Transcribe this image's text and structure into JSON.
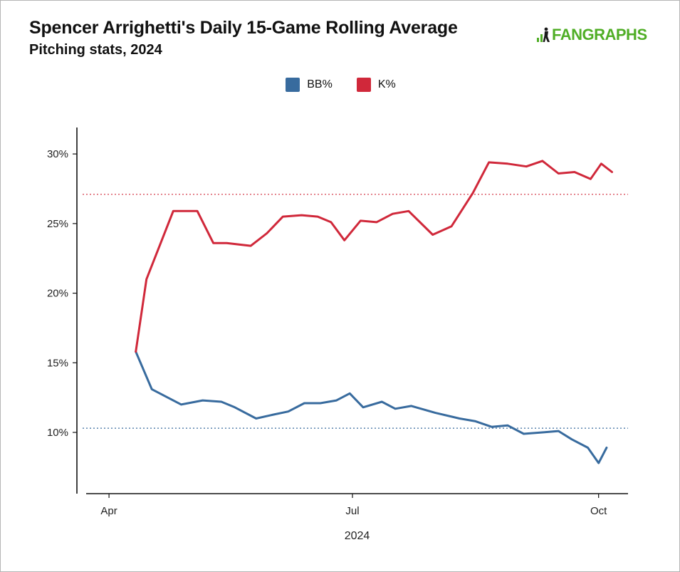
{
  "header": {
    "title": "Spencer Arrighetti's Daily 15-Game Rolling Average",
    "subtitle": "Pitching stats, 2024",
    "logo_text": "FANGRAPHS",
    "logo_icon": "fangraphs-logo-icon"
  },
  "colors": {
    "bb": "#386b9e",
    "k": "#d0283a",
    "brand": "#50ae26"
  },
  "chart_data": {
    "type": "line",
    "title": "Spencer Arrighetti's Daily 15-Game Rolling Average",
    "subtitle": "Pitching stats, 2024",
    "xlabel": "2024",
    "ylabel": "",
    "x_ticks": [
      {
        "label": "Apr",
        "date": "2024-04-01"
      },
      {
        "label": "Jul",
        "date": "2024-07-01"
      },
      {
        "label": "Oct",
        "date": "2024-10-01"
      }
    ],
    "y_ticks": [
      {
        "label": "10%",
        "value": 10
      },
      {
        "label": "15%",
        "value": 15
      },
      {
        "label": "20%",
        "value": 20
      },
      {
        "label": "25%",
        "value": 25
      },
      {
        "label": "30%",
        "value": 30
      }
    ],
    "xlim": [
      "2024-03-20",
      "2024-10-12"
    ],
    "ylim": [
      5.6,
      31.9
    ],
    "grid": false,
    "legend_position": "top-center",
    "reference_lines": [
      {
        "series": "K%",
        "value": 27.1,
        "style": "dotted"
      },
      {
        "series": "BB%",
        "value": 10.3,
        "style": "dotted"
      }
    ],
    "series": [
      {
        "name": "BB%",
        "points": [
          {
            "x": "2024-04-11",
            "y": 15.8
          },
          {
            "x": "2024-04-17",
            "y": 13.1
          },
          {
            "x": "2024-04-28",
            "y": 12.0
          },
          {
            "x": "2024-05-06",
            "y": 12.3
          },
          {
            "x": "2024-05-13",
            "y": 12.2
          },
          {
            "x": "2024-05-18",
            "y": 11.8
          },
          {
            "x": "2024-05-26",
            "y": 11.0
          },
          {
            "x": "2024-06-02",
            "y": 11.3
          },
          {
            "x": "2024-06-07",
            "y": 11.5
          },
          {
            "x": "2024-06-13",
            "y": 12.1
          },
          {
            "x": "2024-06-19",
            "y": 12.1
          },
          {
            "x": "2024-06-25",
            "y": 12.3
          },
          {
            "x": "2024-06-30",
            "y": 12.8
          },
          {
            "x": "2024-07-05",
            "y": 11.8
          },
          {
            "x": "2024-07-12",
            "y": 12.2
          },
          {
            "x": "2024-07-17",
            "y": 11.7
          },
          {
            "x": "2024-07-23",
            "y": 11.9
          },
          {
            "x": "2024-08-01",
            "y": 11.4
          },
          {
            "x": "2024-08-10",
            "y": 11.0
          },
          {
            "x": "2024-08-16",
            "y": 10.8
          },
          {
            "x": "2024-08-22",
            "y": 10.4
          },
          {
            "x": "2024-08-28",
            "y": 10.5
          },
          {
            "x": "2024-09-03",
            "y": 9.9
          },
          {
            "x": "2024-09-10",
            "y": 10.0
          },
          {
            "x": "2024-09-16",
            "y": 10.1
          },
          {
            "x": "2024-09-21",
            "y": 9.5
          },
          {
            "x": "2024-09-27",
            "y": 8.9
          },
          {
            "x": "2024-10-01",
            "y": 7.8
          },
          {
            "x": "2024-10-04",
            "y": 8.9
          }
        ]
      },
      {
        "name": "K%",
        "points": [
          {
            "x": "2024-04-11",
            "y": 15.8
          },
          {
            "x": "2024-04-15",
            "y": 21.0
          },
          {
            "x": "2024-04-25",
            "y": 25.9
          },
          {
            "x": "2024-05-01",
            "y": 25.9
          },
          {
            "x": "2024-05-04",
            "y": 25.9
          },
          {
            "x": "2024-05-10",
            "y": 23.6
          },
          {
            "x": "2024-05-15",
            "y": 23.6
          },
          {
            "x": "2024-05-24",
            "y": 23.4
          },
          {
            "x": "2024-05-30",
            "y": 24.3
          },
          {
            "x": "2024-06-05",
            "y": 25.5
          },
          {
            "x": "2024-06-12",
            "y": 25.6
          },
          {
            "x": "2024-06-18",
            "y": 25.5
          },
          {
            "x": "2024-06-23",
            "y": 25.1
          },
          {
            "x": "2024-06-28",
            "y": 23.8
          },
          {
            "x": "2024-07-04",
            "y": 25.2
          },
          {
            "x": "2024-07-10",
            "y": 25.1
          },
          {
            "x": "2024-07-16",
            "y": 25.7
          },
          {
            "x": "2024-07-22",
            "y": 25.9
          },
          {
            "x": "2024-07-31",
            "y": 24.2
          },
          {
            "x": "2024-08-07",
            "y": 24.8
          },
          {
            "x": "2024-08-15",
            "y": 27.2
          },
          {
            "x": "2024-08-21",
            "y": 29.4
          },
          {
            "x": "2024-08-28",
            "y": 29.3
          },
          {
            "x": "2024-09-04",
            "y": 29.1
          },
          {
            "x": "2024-09-10",
            "y": 29.5
          },
          {
            "x": "2024-09-16",
            "y": 28.6
          },
          {
            "x": "2024-09-22",
            "y": 28.7
          },
          {
            "x": "2024-09-28",
            "y": 28.2
          },
          {
            "x": "2024-10-02",
            "y": 29.3
          },
          {
            "x": "2024-10-06",
            "y": 28.7
          }
        ]
      }
    ]
  }
}
